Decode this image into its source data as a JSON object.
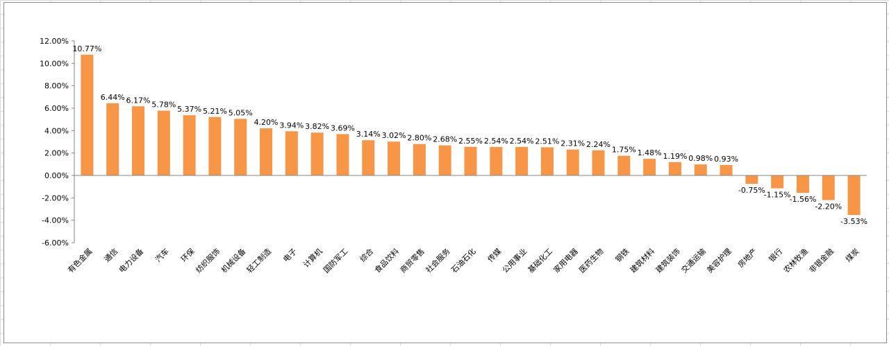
{
  "chart_data": {
    "type": "bar",
    "categories": [
      "有色金属",
      "通信",
      "电力设备",
      "汽车",
      "环保",
      "纺织服饰",
      "机械设备",
      "轻工制造",
      "电子",
      "计算机",
      "国防军工",
      "综合",
      "食品饮料",
      "商贸零售",
      "社会服务",
      "石油石化",
      "传媒",
      "公用事业",
      "基础化工",
      "家用电器",
      "医药生物",
      "钢铁",
      "建筑材料",
      "建筑装饰",
      "交通运输",
      "美容护理",
      "房地产",
      "银行",
      "农林牧渔",
      "非银金融",
      "煤炭"
    ],
    "values": [
      10.77,
      6.44,
      6.17,
      5.78,
      5.37,
      5.21,
      5.05,
      4.2,
      3.94,
      3.82,
      3.69,
      3.14,
      3.02,
      2.8,
      2.68,
      2.55,
      2.54,
      2.54,
      2.51,
      2.31,
      2.24,
      1.75,
      1.48,
      1.19,
      0.98,
      0.93,
      -0.75,
      -1.15,
      -1.56,
      -2.2,
      -3.53
    ],
    "data_labels": [
      "10.77%",
      "6.44%",
      "6.17%",
      "5.78%",
      "5.37%",
      "5.21%",
      "5.05%",
      "4.20%",
      "3.94%",
      "3.82%",
      "3.69%",
      "3.14%",
      "3.02%",
      "2.80%",
      "2.68%",
      "2.55%",
      "2.54%",
      "2.54%",
      "2.51%",
      "2.31%",
      "2.24%",
      "1.75%",
      "1.48%",
      "1.19%",
      "0.98%",
      "0.93%",
      "-0.75%",
      "-1.15%",
      "-1.56%",
      "-2.20%",
      "-3.53%"
    ],
    "y_ticks": [
      12,
      10,
      8,
      6,
      4,
      2,
      0,
      -2,
      -4,
      -6
    ],
    "y_tick_labels": [
      "12.00%",
      "10.00%",
      "8.00%",
      "6.00%",
      "4.00%",
      "2.00%",
      "0.00%",
      "-2.00%",
      "-4.00%",
      "-6.00%"
    ],
    "ylim": [
      -6,
      12
    ],
    "title": "",
    "xlabel": "",
    "ylabel": "",
    "grid": false,
    "legend": "none",
    "bar_color": "#F79646",
    "axis_color": "#868686"
  }
}
